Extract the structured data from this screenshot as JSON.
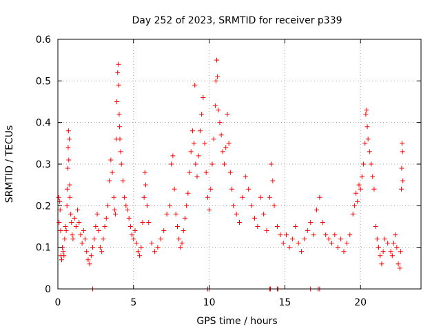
{
  "chart_data": {
    "type": "scatter",
    "title": "Day 252 of 2023, SRMTID for receiver p339",
    "xlabel": "GPS time / hours",
    "ylabel": "SRMTID / TECUs",
    "xlim": [
      0,
      24
    ],
    "ylim": [
      0,
      0.6
    ],
    "xticks": [
      0,
      5,
      10,
      15,
      20
    ],
    "yticks": [
      0,
      0.1,
      0.2,
      0.3,
      0.4,
      0.5,
      0.6
    ],
    "xtick_labels": [
      "0",
      "5",
      "10",
      "15",
      "20"
    ],
    "ytick_labels": [
      "0",
      "0.1",
      "0.2",
      "0.3",
      "0.4",
      "0.5",
      "0.6"
    ],
    "grid": true,
    "marker": "+",
    "color": "#ff0000",
    "series": [
      {
        "name": "SRMTID",
        "points": [
          [
            0.05,
            0.22
          ],
          [
            0.08,
            0.16
          ],
          [
            0.12,
            0.21
          ],
          [
            0.15,
            0.19
          ],
          [
            0.18,
            0.14
          ],
          [
            0.2,
            0.08
          ],
          [
            0.25,
            0.07
          ],
          [
            0.3,
            0.1
          ],
          [
            0.35,
            0.09
          ],
          [
            0.4,
            0.08
          ],
          [
            0.45,
            0.12
          ],
          [
            0.5,
            0.15
          ],
          [
            0.55,
            0.14
          ],
          [
            0.6,
            0.2
          ],
          [
            0.62,
            0.24
          ],
          [
            0.65,
            0.29
          ],
          [
            0.68,
            0.34
          ],
          [
            0.7,
            0.38
          ],
          [
            0.72,
            0.31
          ],
          [
            0.75,
            0.36
          ],
          [
            0.78,
            0.25
          ],
          [
            0.8,
            0.22
          ],
          [
            0.85,
            0.18
          ],
          [
            0.9,
            0.16
          ],
          [
            0.95,
            0.13
          ],
          [
            1.0,
            0.12
          ],
          [
            1.1,
            0.17
          ],
          [
            1.2,
            0.15
          ],
          [
            1.3,
            0.19
          ],
          [
            1.4,
            0.16
          ],
          [
            1.5,
            0.13
          ],
          [
            1.6,
            0.11
          ],
          [
            1.7,
            0.14
          ],
          [
            1.8,
            0.12
          ],
          [
            1.9,
            0.09
          ],
          [
            2.0,
            0.07
          ],
          [
            2.1,
            0.06
          ],
          [
            2.2,
            0.08
          ],
          [
            2.3,
            0.1
          ],
          [
            2.4,
            0.12
          ],
          [
            2.5,
            0.15
          ],
          [
            2.6,
            0.18
          ],
          [
            2.7,
            0.14
          ],
          [
            2.8,
            0.1
          ],
          [
            2.9,
            0.09
          ],
          [
            3.0,
            0.12
          ],
          [
            3.1,
            0.15
          ],
          [
            3.2,
            0.17
          ],
          [
            3.3,
            0.2
          ],
          [
            3.4,
            0.26
          ],
          [
            3.5,
            0.31
          ],
          [
            3.6,
            0.28
          ],
          [
            3.7,
            0.22
          ],
          [
            3.75,
            0.19
          ],
          [
            3.8,
            0.18
          ],
          [
            3.85,
            0.36
          ],
          [
            3.9,
            0.45
          ],
          [
            3.95,
            0.52
          ],
          [
            4.0,
            0.54
          ],
          [
            4.02,
            0.49
          ],
          [
            4.05,
            0.42
          ],
          [
            4.08,
            0.39
          ],
          [
            4.1,
            0.36
          ],
          [
            4.15,
            0.33
          ],
          [
            4.2,
            0.3
          ],
          [
            4.3,
            0.26
          ],
          [
            4.4,
            0.22
          ],
          [
            4.5,
            0.2
          ],
          [
            4.6,
            0.19
          ],
          [
            4.7,
            0.17
          ],
          [
            4.8,
            0.15
          ],
          [
            4.9,
            0.13
          ],
          [
            5.0,
            0.12
          ],
          [
            5.1,
            0.14
          ],
          [
            5.2,
            0.11
          ],
          [
            5.3,
            0.09
          ],
          [
            5.4,
            0.08
          ],
          [
            5.5,
            0.1
          ],
          [
            5.6,
            0.16
          ],
          [
            5.7,
            0.22
          ],
          [
            5.75,
            0.28
          ],
          [
            5.8,
            0.25
          ],
          [
            5.9,
            0.2
          ],
          [
            6.0,
            0.16
          ],
          [
            6.2,
            0.11
          ],
          [
            6.4,
            0.09
          ],
          [
            6.6,
            0.1
          ],
          [
            6.8,
            0.12
          ],
          [
            7.0,
            0.14
          ],
          [
            7.2,
            0.18
          ],
          [
            7.4,
            0.2
          ],
          [
            7.5,
            0.3
          ],
          [
            7.6,
            0.32
          ],
          [
            7.7,
            0.24
          ],
          [
            7.8,
            0.18
          ],
          [
            7.9,
            0.15
          ],
          [
            8.0,
            0.12
          ],
          [
            8.1,
            0.1
          ],
          [
            8.2,
            0.11
          ],
          [
            8.3,
            0.14
          ],
          [
            8.4,
            0.17
          ],
          [
            8.5,
            0.2
          ],
          [
            8.6,
            0.23
          ],
          [
            8.7,
            0.28
          ],
          [
            8.8,
            0.33
          ],
          [
            8.9,
            0.38
          ],
          [
            9.0,
            0.35
          ],
          [
            9.05,
            0.49
          ],
          [
            9.1,
            0.3
          ],
          [
            9.2,
            0.27
          ],
          [
            9.3,
            0.32
          ],
          [
            9.4,
            0.38
          ],
          [
            9.5,
            0.42
          ],
          [
            9.6,
            0.46
          ],
          [
            9.7,
            0.35
          ],
          [
            9.8,
            0.28
          ],
          [
            9.9,
            0.22
          ],
          [
            10.0,
            0.19
          ],
          [
            10.1,
            0.24
          ],
          [
            10.2,
            0.3
          ],
          [
            10.3,
            0.36
          ],
          [
            10.4,
            0.44
          ],
          [
            10.45,
            0.5
          ],
          [
            10.5,
            0.55
          ],
          [
            10.55,
            0.51
          ],
          [
            10.6,
            0.43
          ],
          [
            10.7,
            0.4
          ],
          [
            10.8,
            0.37
          ],
          [
            10.9,
            0.33
          ],
          [
            11.0,
            0.3
          ],
          [
            11.1,
            0.34
          ],
          [
            11.2,
            0.42
          ],
          [
            11.3,
            0.35
          ],
          [
            11.4,
            0.28
          ],
          [
            11.5,
            0.24
          ],
          [
            11.6,
            0.2
          ],
          [
            11.8,
            0.18
          ],
          [
            12.0,
            0.16
          ],
          [
            12.2,
            0.22
          ],
          [
            12.4,
            0.27
          ],
          [
            12.6,
            0.24
          ],
          [
            12.8,
            0.2
          ],
          [
            13.0,
            0.17
          ],
          [
            13.2,
            0.15
          ],
          [
            13.4,
            0.22
          ],
          [
            13.6,
            0.18
          ],
          [
            13.8,
            0.14
          ],
          [
            14.0,
            0.22
          ],
          [
            14.1,
            0.3
          ],
          [
            14.2,
            0.26
          ],
          [
            14.3,
            0.2
          ],
          [
            14.5,
            0.15
          ],
          [
            14.7,
            0.13
          ],
          [
            14.9,
            0.11
          ],
          [
            15.1,
            0.13
          ],
          [
            15.3,
            0.1
          ],
          [
            15.5,
            0.12
          ],
          [
            15.7,
            0.15
          ],
          [
            15.9,
            0.11
          ],
          [
            16.1,
            0.09
          ],
          [
            16.3,
            0.12
          ],
          [
            16.5,
            0.14
          ],
          [
            16.7,
            0.16
          ],
          [
            16.9,
            0.13
          ],
          [
            17.1,
            0.19
          ],
          [
            17.3,
            0.22
          ],
          [
            17.5,
            0.16
          ],
          [
            17.7,
            0.13
          ],
          [
            17.9,
            0.12
          ],
          [
            18.1,
            0.11
          ],
          [
            18.3,
            0.13
          ],
          [
            18.5,
            0.1
          ],
          [
            18.7,
            0.12
          ],
          [
            18.9,
            0.09
          ],
          [
            19.1,
            0.11
          ],
          [
            19.3,
            0.13
          ],
          [
            19.5,
            0.18
          ],
          [
            19.6,
            0.2
          ],
          [
            19.7,
            0.23
          ],
          [
            19.8,
            0.21
          ],
          [
            19.9,
            0.25
          ],
          [
            20.0,
            0.24
          ],
          [
            20.1,
            0.27
          ],
          [
            20.2,
            0.3
          ],
          [
            20.3,
            0.35
          ],
          [
            20.35,
            0.42
          ],
          [
            20.4,
            0.43
          ],
          [
            20.45,
            0.39
          ],
          [
            20.5,
            0.36
          ],
          [
            20.6,
            0.33
          ],
          [
            20.7,
            0.3
          ],
          [
            20.8,
            0.27
          ],
          [
            20.9,
            0.24
          ],
          [
            21.0,
            0.15
          ],
          [
            21.1,
            0.12
          ],
          [
            21.2,
            0.1
          ],
          [
            21.3,
            0.08
          ],
          [
            21.4,
            0.06
          ],
          [
            21.5,
            0.09
          ],
          [
            21.6,
            0.12
          ],
          [
            21.8,
            0.11
          ],
          [
            22.0,
            0.09
          ],
          [
            22.1,
            0.08
          ],
          [
            22.2,
            0.11
          ],
          [
            22.3,
            0.13
          ],
          [
            22.4,
            0.1
          ],
          [
            22.5,
            0.06
          ],
          [
            22.6,
            0.05
          ],
          [
            22.65,
            0.09
          ],
          [
            22.7,
            0.24
          ],
          [
            22.72,
            0.29
          ],
          [
            22.75,
            0.35
          ],
          [
            22.78,
            0.33
          ],
          [
            22.8,
            0.26
          ],
          [
            2.3,
            0.0
          ],
          [
            9.9,
            0.0
          ],
          [
            10.0,
            0.0
          ],
          [
            14.0,
            0.0
          ],
          [
            14.05,
            0.0
          ],
          [
            14.5,
            0.0
          ],
          [
            14.55,
            0.0
          ],
          [
            16.7,
            0.0
          ],
          [
            17.2,
            0.0
          ],
          [
            17.3,
            0.0
          ]
        ]
      }
    ]
  }
}
